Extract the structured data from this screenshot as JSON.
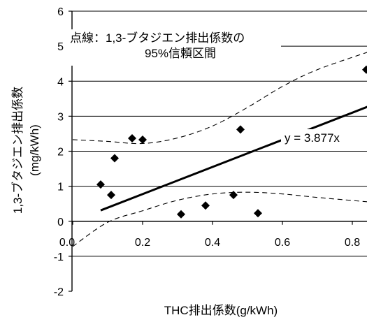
{
  "chart_data": {
    "type": "scatter",
    "title": "",
    "xlabel": "THC排出係数(g/kWh)",
    "ylabel": "1,3-ブタジエン排出係数",
    "ylabel_unit": "(mg/kWh)",
    "xlim": [
      0,
      0.85
    ],
    "ylim": [
      -2,
      6
    ],
    "x_ticks": [
      0.0,
      0.2,
      0.4,
      0.6,
      0.8
    ],
    "x_tick_labels": [
      "0.0",
      "0.2",
      "0.4",
      "0.6",
      "0.8"
    ],
    "y_ticks": [
      -2,
      -1,
      0,
      1,
      2,
      3,
      4,
      5,
      6
    ],
    "y_tick_labels": [
      "-2",
      "-1",
      "0",
      "1",
      "2",
      "3",
      "4",
      "5",
      "6"
    ],
    "grid": true,
    "points": [
      {
        "x": 0.08,
        "y": 1.05
      },
      {
        "x": 0.11,
        "y": 0.75
      },
      {
        "x": 0.12,
        "y": 1.8
      },
      {
        "x": 0.17,
        "y": 2.37
      },
      {
        "x": 0.2,
        "y": 2.33
      },
      {
        "x": 0.31,
        "y": 0.2
      },
      {
        "x": 0.38,
        "y": 0.45
      },
      {
        "x": 0.46,
        "y": 0.75
      },
      {
        "x": 0.48,
        "y": 2.62
      },
      {
        "x": 0.53,
        "y": 0.23
      },
      {
        "x": 0.84,
        "y": 4.33
      }
    ],
    "regression": {
      "slope": 3.877,
      "x_range": [
        0.08,
        0.85
      ],
      "label": "y = 3.877x"
    },
    "confidence_band": {
      "upper": [
        [
          0.0,
          2.33
        ],
        [
          0.1,
          2.28
        ],
        [
          0.2,
          2.22
        ],
        [
          0.3,
          2.38
        ],
        [
          0.4,
          2.72
        ],
        [
          0.5,
          3.25
        ],
        [
          0.6,
          3.85
        ],
        [
          0.7,
          4.33
        ],
        [
          0.85,
          4.85
        ]
      ],
      "lower": [
        [
          0.0,
          -0.72
        ],
        [
          0.1,
          -0.03
        ],
        [
          0.2,
          0.3
        ],
        [
          0.3,
          0.6
        ],
        [
          0.4,
          0.78
        ],
        [
          0.5,
          0.83
        ],
        [
          0.6,
          0.78
        ],
        [
          0.7,
          0.68
        ],
        [
          0.85,
          0.55
        ]
      ]
    },
    "annotation": {
      "line1": "点線：1,3-ブタジエン排出係数の",
      "line2": "95%信頼区間"
    }
  }
}
